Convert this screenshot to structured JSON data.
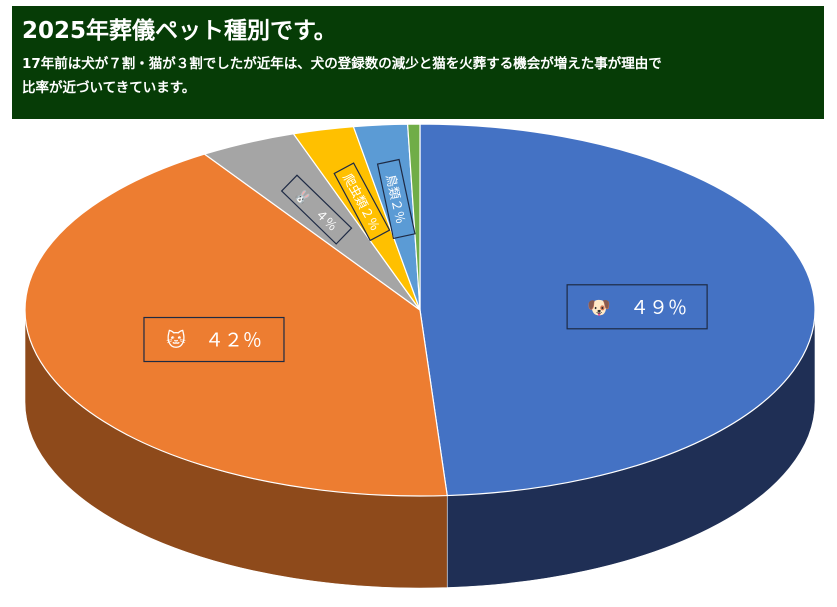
{
  "header": {
    "title": "2025年葬儀ペット種別です。",
    "subtitle": "17年前は犬が７割・猫が３割でしたが近年は、犬の登録数の減少と猫を火葬する機会が増えた事が理由で\n比率が近づいてきています。"
  },
  "chart_data": {
    "type": "pie",
    "style": "3d",
    "slices": [
      {
        "label": "🐶　４９％",
        "value": 49,
        "color": "#4472c4",
        "side_color": "#1f2f55"
      },
      {
        "label": "🐱　４２％",
        "value": 42,
        "color": "#ed7d31",
        "side_color": "#8e4a1b"
      },
      {
        "label": "🐰　４％",
        "value": 4,
        "color": "#a5a5a5",
        "side_color": "#5f5f5f"
      },
      {
        "label": "爬虫類２％",
        "value": 2.5,
        "color": "#ffc000",
        "side_color": "#9c7500"
      },
      {
        "label": "鳥類２％",
        "value": 2.2,
        "color": "#5b9bd5",
        "side_color": "#2f5f8e"
      },
      {
        "label": "",
        "value": 0.5,
        "color": "#70ad47",
        "side_color": "#3e6627"
      }
    ]
  }
}
